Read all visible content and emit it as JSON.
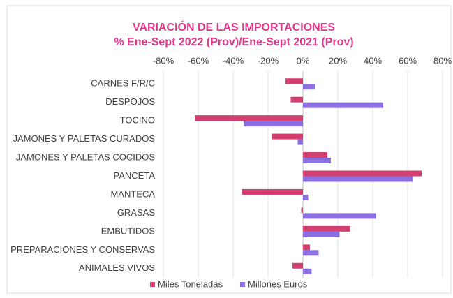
{
  "chart_data": {
    "type": "hbar",
    "title": "VARIACIÓN DE LAS IMPORTACIONES",
    "subtitle": "% Ene-Sept 2022 (Prov)/Ene-Sept 2021 (Prov)",
    "categories": [
      "CARNES F/R/C",
      "DESPOJOS",
      "TOCINO",
      "JAMONES Y PALETAS CURADOS",
      "JAMONES Y PALETAS COCIDOS",
      "PANCETA",
      "MANTECA",
      "GRASAS",
      "EMBUTIDOS",
      "PREPARACIONES Y CONSERVAS",
      "ANIMALES VIVOS"
    ],
    "series": [
      {
        "name": "Miles Toneladas",
        "color": "#d43f6f",
        "values": [
          -10,
          -7,
          -62,
          -18,
          14,
          68,
          -35,
          -1,
          27,
          4,
          -6
        ]
      },
      {
        "name": "Millones Euros",
        "color": "#8b6fe0",
        "values": [
          7,
          46,
          -34,
          -3,
          16,
          63,
          3,
          42,
          21,
          9,
          5
        ]
      }
    ],
    "xlim": [
      -80,
      80
    ],
    "xticks": [
      {
        "value": -80,
        "label": "-80%"
      },
      {
        "value": -60,
        "label": "-60%"
      },
      {
        "value": -40,
        "label": "-40%"
      },
      {
        "value": -20,
        "label": "-20%"
      },
      {
        "value": 0,
        "label": "0%"
      },
      {
        "value": 20,
        "label": "20%"
      },
      {
        "value": 40,
        "label": "40%"
      },
      {
        "value": 60,
        "label": "60%"
      },
      {
        "value": 80,
        "label": "80%"
      }
    ],
    "grid": true,
    "legend": "bottom"
  }
}
